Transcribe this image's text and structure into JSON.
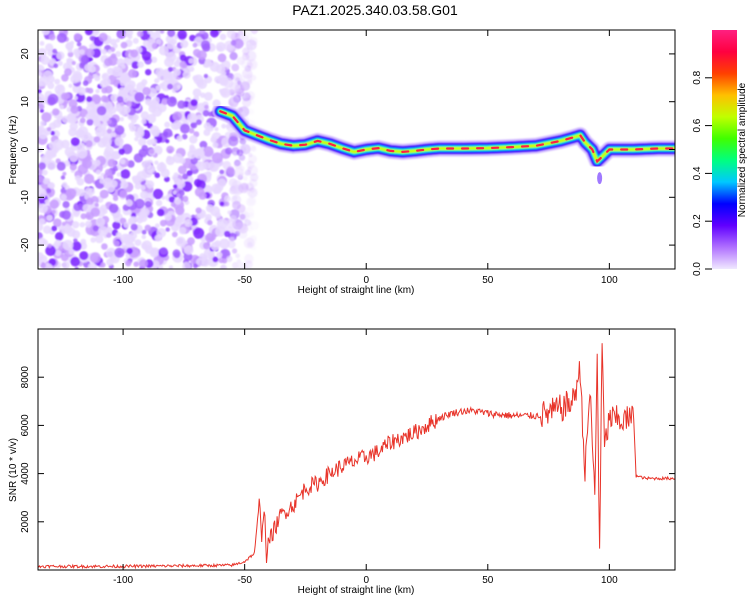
{
  "title": "PAZ1.2025.340.03.58.G01",
  "chart_data": [
    {
      "type": "heatmap",
      "xlabel": "Height of straight line (km)",
      "ylabel": "Frequency (Hz)",
      "xlim": [
        -135,
        127
      ],
      "ylim": [
        -25,
        25
      ],
      "xticks": [
        -100,
        -50,
        0,
        50,
        100
      ],
      "yticks": [
        -20,
        -10,
        0,
        10,
        20
      ],
      "noise_region_x": [
        -135,
        -55
      ],
      "ridge": {
        "x": [
          -60,
          -55,
          -50,
          -45,
          -40,
          -35,
          -30,
          -25,
          -20,
          -15,
          -10,
          -5,
          0,
          5,
          10,
          15,
          20,
          25,
          30,
          40,
          50,
          60,
          70,
          80,
          85,
          88,
          90,
          93,
          95,
          97,
          100,
          110,
          120,
          127
        ],
        "y": [
          8,
          7,
          4,
          3,
          2,
          1.2,
          0.8,
          1,
          1.8,
          1.2,
          0.3,
          -0.5,
          0,
          0.3,
          -0.3,
          -0.5,
          -0.3,
          0,
          0.2,
          0.2,
          0.3,
          0.5,
          0.8,
          1.8,
          2.5,
          3,
          1.5,
          0,
          -2.5,
          -1.5,
          0,
          0,
          0.2,
          0.2
        ]
      },
      "colorbar": {
        "label": "Normalized spectral amplitude",
        "range": [
          0,
          1
        ],
        "ticks": [
          "0.0",
          "0.2",
          "0.4",
          "0.6",
          "0.8"
        ],
        "tick_values": [
          0,
          0.2,
          0.4,
          0.6,
          0.8
        ],
        "colors": [
          "#f0e8ff",
          "#b070ff",
          "#6000ff",
          "#0000ff",
          "#00c8ff",
          "#00ff80",
          "#40ff00",
          "#c0ff00",
          "#ffc000",
          "#ff4000",
          "#ff0040",
          "#ff2080"
        ]
      }
    },
    {
      "type": "line",
      "xlabel": "Height of straight line (km)",
      "ylabel": "SNR (10 * v/v)",
      "xlim": [
        -135,
        127
      ],
      "ylim": [
        0,
        10000
      ],
      "xticks": [
        -100,
        -50,
        0,
        50,
        100
      ],
      "yticks": [
        2000,
        4000,
        6000,
        8000
      ],
      "color": "#e8342a",
      "series": [
        {
          "name": "SNR",
          "x": [
            -135,
            -100,
            -70,
            -55,
            -50,
            -46,
            -44,
            -43,
            -42,
            -41,
            -40,
            -35,
            -30,
            -25,
            -20,
            -15,
            -10,
            -5,
            0,
            5,
            10,
            15,
            20,
            25,
            30,
            35,
            40,
            45,
            50,
            55,
            60,
            65,
            70,
            75,
            80,
            85,
            88,
            90,
            92,
            94,
            95,
            96,
            97,
            98,
            100,
            105,
            110,
            111,
            115,
            120,
            127
          ],
          "values": [
            150,
            150,
            180,
            200,
            350,
            700,
            2700,
            1500,
            2700,
            600,
            1200,
            2300,
            2700,
            3400,
            3600,
            4000,
            4300,
            4500,
            4700,
            4900,
            5300,
            5500,
            5700,
            6000,
            6300,
            6500,
            6600,
            6600,
            6500,
            6450,
            6400,
            6400,
            6400,
            6500,
            6700,
            7000,
            8300,
            4000,
            7500,
            3000,
            9000,
            700,
            9500,
            5000,
            6300,
            6200,
            6300,
            3900,
            3800,
            3800,
            3800
          ]
        }
      ]
    }
  ]
}
